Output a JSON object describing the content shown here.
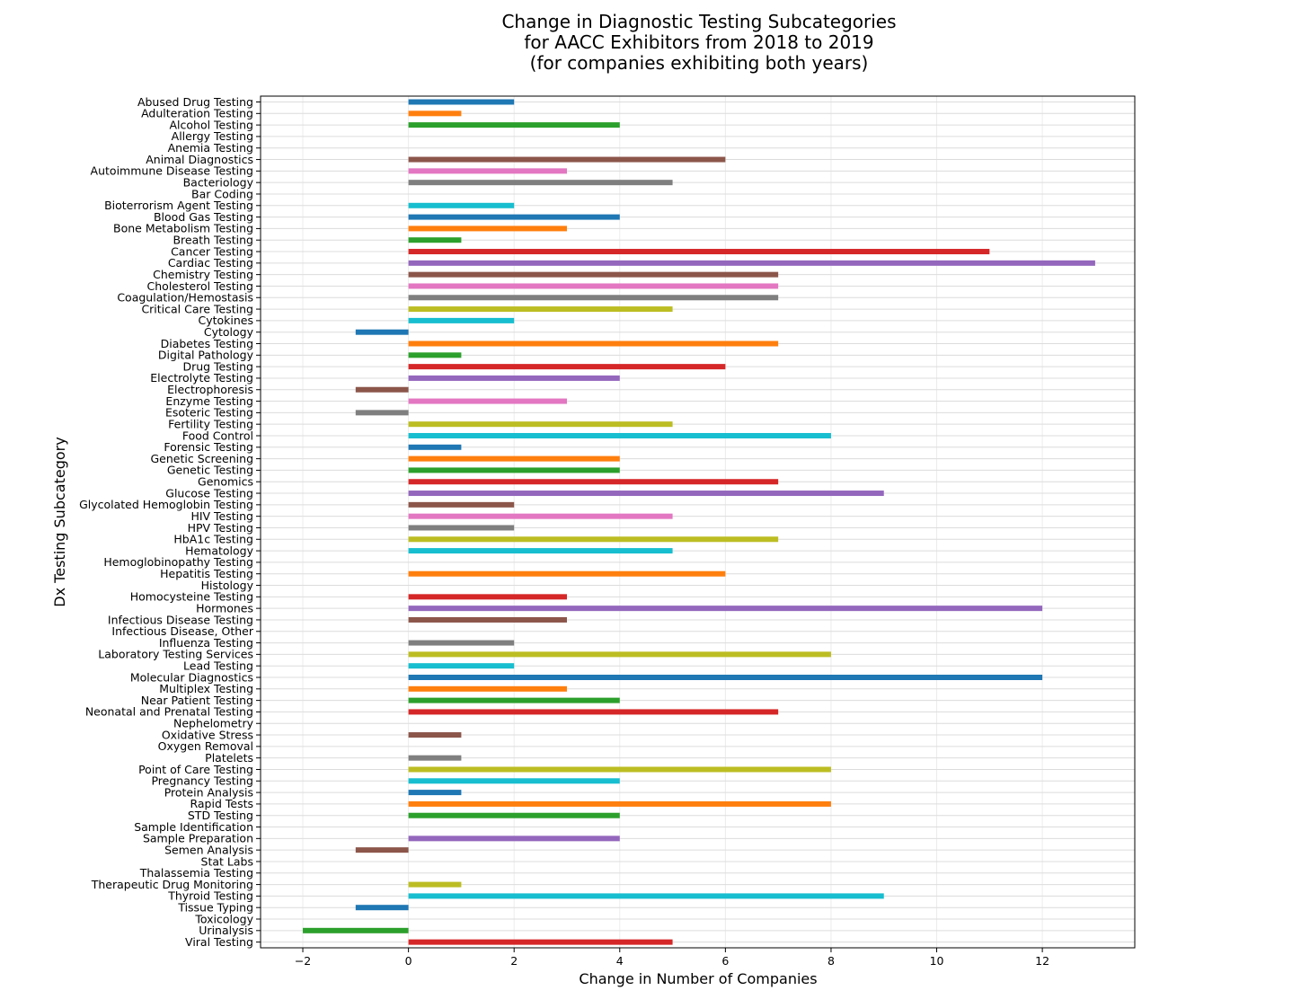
{
  "chart_data": {
    "type": "bar",
    "orientation": "horizontal",
    "title_lines": [
      "Change in Diagnostic Testing Subcategories",
      "for AACC Exhibitors from 2018 to 2019",
      "(for companies exhibiting both years)"
    ],
    "xlabel": "Change in Number of Companies",
    "ylabel": "Dx Testing Subcategory",
    "xlim": [
      -2.8,
      13.75
    ],
    "x_ticks": [
      -2,
      0,
      2,
      4,
      6,
      8,
      10,
      12
    ],
    "x_tick_labels": [
      "−2",
      "0",
      "2",
      "4",
      "6",
      "8",
      "10",
      "12"
    ],
    "grid": true,
    "legend": "none",
    "palette": [
      "#1f77b4",
      "#ff7f0e",
      "#2ca02c",
      "#d62728",
      "#9467bd",
      "#8c564b",
      "#e377c2",
      "#7f7f7f",
      "#bcbd22",
      "#17becf"
    ],
    "categories": [
      "Abused Drug Testing",
      "Adulteration Testing",
      "Alcohol Testing",
      "Allergy Testing",
      "Anemia Testing",
      "Animal Diagnostics",
      "Autoimmune Disease Testing",
      "Bacteriology",
      "Bar Coding",
      "Bioterrorism Agent Testing",
      "Blood Gas Testing",
      "Bone Metabolism Testing",
      "Breath Testing",
      "Cancer Testing",
      "Cardiac Testing",
      "Chemistry Testing",
      "Cholesterol Testing",
      "Coagulation/Hemostasis",
      "Critical Care Testing",
      "Cytokines",
      "Cytology",
      "Diabetes Testing",
      "Digital Pathology",
      "Drug Testing",
      "Electrolyte Testing",
      "Electrophoresis",
      "Enzyme Testing",
      "Esoteric Testing",
      "Fertility Testing",
      "Food Control",
      "Forensic Testing",
      "Genetic Screening",
      "Genetic Testing",
      "Genomics",
      "Glucose Testing",
      "Glycolated Hemoglobin Testing",
      "HIV Testing",
      "HPV Testing",
      "HbA1c Testing",
      "Hematology",
      "Hemoglobinopathy Testing",
      "Hepatitis Testing",
      "Histology",
      "Homocysteine Testing",
      "Hormones",
      "Infectious Disease Testing",
      "Infectious Disease, Other",
      "Influenza Testing",
      "Laboratory Testing Services",
      "Lead Testing",
      "Molecular Diagnostics",
      "Multiplex Testing",
      "Near Patient Testing",
      "Neonatal and Prenatal Testing",
      "Nephelometry",
      "Oxidative Stress",
      "Oxygen Removal",
      "Platelets",
      "Point of Care Testing",
      "Pregnancy Testing",
      "Protein Analysis",
      "Rapid Tests",
      "STD Testing",
      "Sample Identification",
      "Sample Preparation",
      "Semen Analysis",
      "Stat Labs",
      "Thalassemia Testing",
      "Therapeutic Drug Monitoring",
      "Thyroid Testing",
      "Tissue Typing",
      "Toxicology",
      "Urinalysis",
      "Viral Testing"
    ],
    "values": [
      2,
      1,
      4,
      0,
      0,
      6,
      3,
      5,
      0,
      2,
      4,
      3,
      1,
      11,
      13,
      7,
      7,
      7,
      5,
      2,
      -1,
      7,
      1,
      6,
      4,
      -1,
      3,
      -1,
      5,
      8,
      1,
      4,
      4,
      7,
      9,
      2,
      5,
      2,
      7,
      5,
      0,
      6,
      0,
      3,
      12,
      3,
      0,
      2,
      8,
      2,
      12,
      3,
      4,
      7,
      0,
      1,
      0,
      1,
      8,
      4,
      1,
      8,
      4,
      0,
      4,
      -1,
      0,
      0,
      1,
      9,
      -1,
      0,
      -2,
      5
    ]
  }
}
